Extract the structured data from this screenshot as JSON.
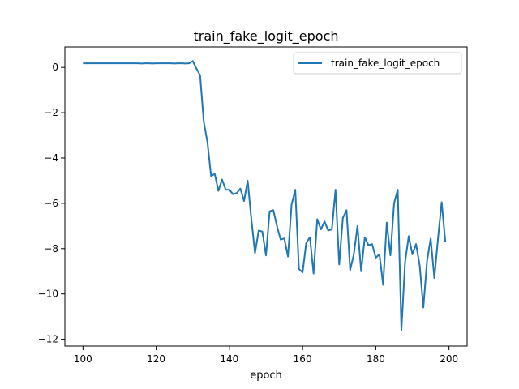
{
  "chart_data": {
    "type": "line",
    "title": "train_fake_logit_epoch",
    "xlabel": "epoch",
    "ylabel": "",
    "xlim": [
      95.05,
      204.95
    ],
    "ylim": [
      -12.3,
      0.9
    ],
    "xticks": [
      100,
      120,
      140,
      160,
      180,
      200
    ],
    "yticks": [
      0,
      -2,
      -4,
      -6,
      -8,
      -10,
      -12
    ],
    "ytick_labels": [
      "0",
      "−2",
      "−4",
      "−6",
      "−8",
      "−10",
      "−12"
    ],
    "legend_position": "top-right",
    "series": [
      {
        "name": "train_fake_logit_epoch",
        "color": "#1f77b4",
        "x_start": 100,
        "x_step": 1,
        "values": [
          0.18,
          0.18,
          0.18,
          0.18,
          0.18,
          0.18,
          0.18,
          0.18,
          0.18,
          0.18,
          0.18,
          0.18,
          0.18,
          0.18,
          0.18,
          0.18,
          0.17,
          0.18,
          0.18,
          0.17,
          0.18,
          0.18,
          0.18,
          0.18,
          0.18,
          0.17,
          0.18,
          0.18,
          0.17,
          0.18,
          0.28,
          -0.05,
          -0.35,
          -2.4,
          -3.3,
          -4.8,
          -4.7,
          -5.45,
          -4.95,
          -5.4,
          -5.4,
          -5.6,
          -5.55,
          -5.35,
          -5.9,
          -5.0,
          -6.7,
          -8.2,
          -7.2,
          -7.25,
          -8.3,
          -6.35,
          -6.3,
          -7.0,
          -7.6,
          -7.55,
          -8.35,
          -6.05,
          -5.4,
          -8.9,
          -9.05,
          -7.75,
          -7.5,
          -9.1,
          -6.7,
          -7.15,
          -6.8,
          -7.2,
          -7.15,
          -5.4,
          -8.7,
          -6.65,
          -6.3,
          -8.95,
          -8.25,
          -7.0,
          -9.0,
          -7.5,
          -7.85,
          -7.8,
          -8.4,
          -8.25,
          -9.6,
          -6.85,
          -8.3,
          -6.0,
          -5.4,
          -11.6,
          -8.6,
          -7.45,
          -8.25,
          -7.8,
          -8.75,
          -10.6,
          -8.55,
          -7.55,
          -9.3,
          -7.55,
          -5.95,
          -7.7
        ]
      }
    ]
  }
}
